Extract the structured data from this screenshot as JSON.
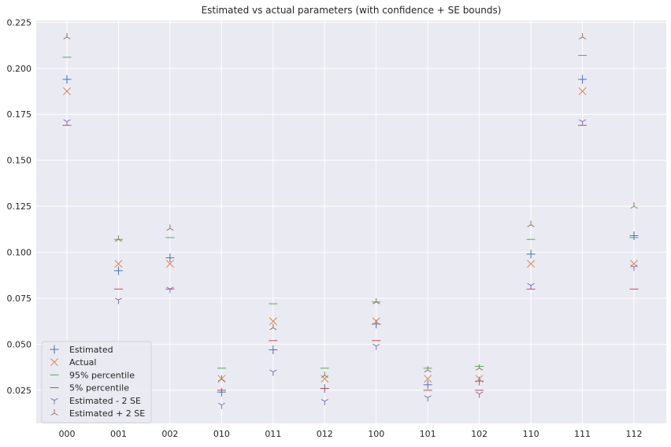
{
  "chart_data": {
    "type": "scatter",
    "title": "Estimated vs actual parameters (with confidence + SE bounds)",
    "xlabel": "",
    "ylabel": "",
    "categories": [
      "000",
      "001",
      "002",
      "010",
      "011",
      "012",
      "100",
      "101",
      "102",
      "110",
      "111",
      "112"
    ],
    "ylim": [
      0.007,
      0.226
    ],
    "yticks": [
      0.025,
      0.05,
      0.075,
      0.1,
      0.125,
      0.15,
      0.175,
      0.2,
      0.225
    ],
    "ytick_labels": [
      "0.025",
      "0.050",
      "0.075",
      "0.100",
      "0.125",
      "0.150",
      "0.175",
      "0.200",
      "0.225"
    ],
    "grid": true,
    "legend_position": "bottom-left",
    "background": "#eaeaf2",
    "series": [
      {
        "name": "Estimated",
        "marker": "plus",
        "color": "#4c72b0",
        "values": [
          0.194,
          0.09,
          0.097,
          0.024,
          0.047,
          0.026,
          0.061,
          0.028,
          0.03,
          0.099,
          0.194,
          0.109
        ]
      },
      {
        "name": "Actual",
        "marker": "x",
        "color": "#dd8452",
        "values": [
          0.1875,
          0.09375,
          0.09375,
          0.03125,
          0.0625,
          0.03125,
          0.0625,
          0.03125,
          0.03125,
          0.09375,
          0.1875,
          0.09375
        ]
      },
      {
        "name": "95% percentile",
        "marker": "hline",
        "color": "#55a868",
        "values": [
          0.206,
          0.107,
          0.108,
          0.037,
          0.072,
          0.037,
          0.073,
          0.037,
          0.038,
          0.107,
          0.207,
          0.108
        ]
      },
      {
        "name": "5% percentile",
        "marker": "hline",
        "color": "#c44e52",
        "values": [
          0.169,
          0.08,
          0.08,
          0.025,
          0.052,
          0.026,
          0.052,
          0.025,
          0.025,
          0.08,
          0.169,
          0.08
        ]
      },
      {
        "name": "Estimated - 2 SE",
        "marker": "tri_down",
        "color": "#8172b3",
        "values": [
          0.171,
          0.074,
          0.08,
          0.017,
          0.035,
          0.019,
          0.049,
          0.021,
          0.023,
          0.082,
          0.171,
          0.092
        ]
      },
      {
        "name": "Estimated + 2 SE",
        "marker": "tri_up",
        "color": "#937860",
        "values": [
          0.217,
          0.107,
          0.113,
          0.031,
          0.059,
          0.033,
          0.073,
          0.036,
          0.037,
          0.115,
          0.217,
          0.125
        ]
      }
    ]
  }
}
